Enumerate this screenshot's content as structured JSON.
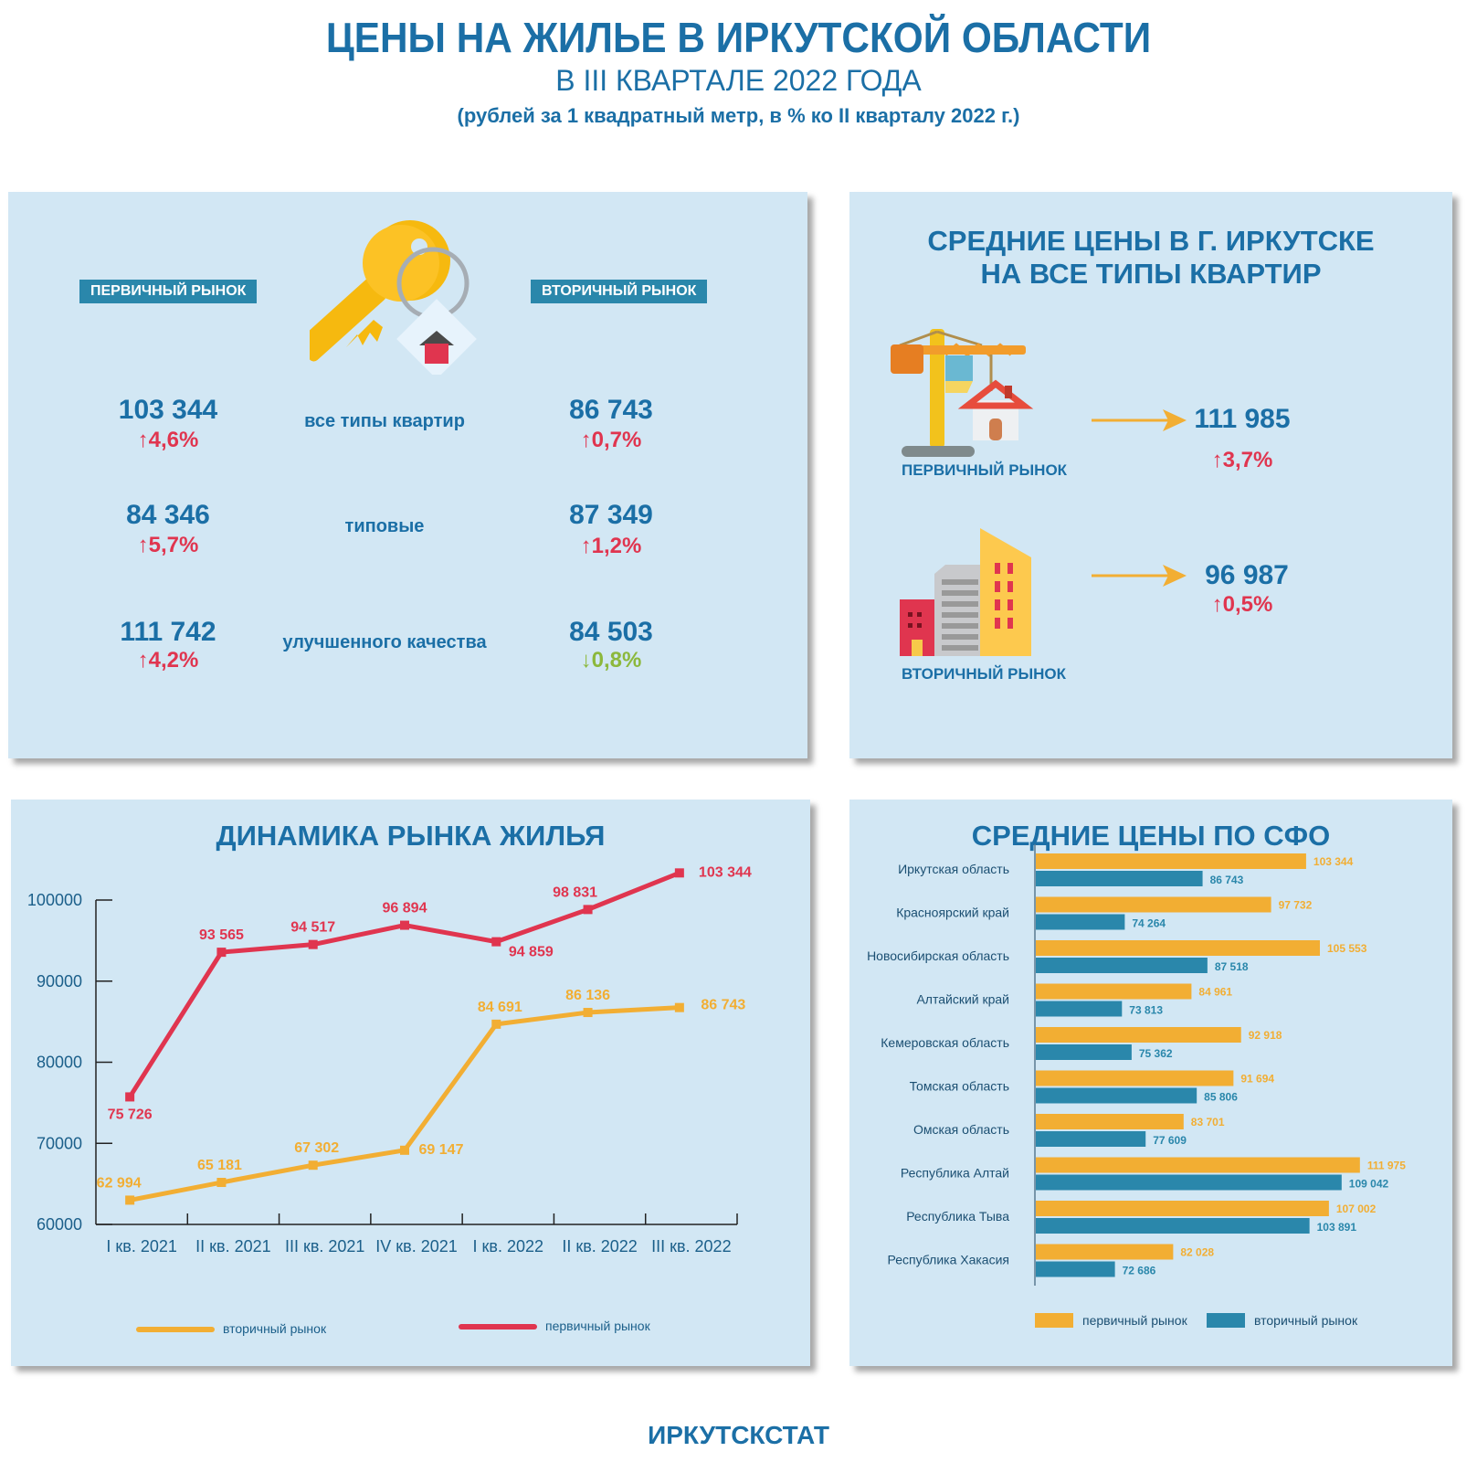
{
  "header": {
    "title": "ЦЕНЫ НА ЖИЛЬЕ В ИРКУТСКОЙ ОБЛАСТИ",
    "subtitle": "В III КВАРТАЛЕ 2022 ГОДА",
    "units": "(рублей за 1 квадратный метр, в % ко II кварталу 2022 г.)"
  },
  "region_panel": {
    "primary_label": "ПЕРВИЧНЫЙ РЫНОК",
    "secondary_label": "ВТОРИЧНЫЙ РЫНОК",
    "icon": "key-with-house-tag-icon",
    "rows": [
      {
        "category": "все типы квартир",
        "primary_value": "103 344",
        "primary_change": "↑4,6%",
        "secondary_value": "86 743",
        "secondary_change": "↑0,7%",
        "secondary_dir": "up"
      },
      {
        "category": "типовые",
        "primary_value": "84 346",
        "primary_change": "↑5,7%",
        "secondary_value": "87 349",
        "secondary_change": "↑1,2%",
        "secondary_dir": "up"
      },
      {
        "category": "улучшенного качества",
        "primary_value": "111 742",
        "primary_change": "↑4,2%",
        "secondary_value": "84 503",
        "secondary_change": "↓0,8%",
        "secondary_dir": "down"
      }
    ]
  },
  "city_panel": {
    "title_line1": "СРЕДНИЕ  ЦЕНЫ  В  Г.  ИРКУТСКЕ",
    "title_line2": "НА ВСЕ ТИПЫ КВАРТИР",
    "primary": {
      "label": "ПЕРВИЧНЫЙ РЫНОК",
      "value": "111 985",
      "change": "↑3,7%",
      "icon": "crane-house-icon"
    },
    "secondary": {
      "label": "ВТОРИЧНЫЙ РЫНОК",
      "value": "96 987",
      "change": "↑0,5%",
      "icon": "buildings-icon"
    }
  },
  "colors": {
    "primary_line": "#e0354f",
    "secondary_line": "#f2ae33",
    "bar_primary": "#f2ae33",
    "bar_secondary": "#2a87ab",
    "title_blue": "#1b6fa6",
    "panel_bg": "#d2e7f4"
  },
  "chart_data": [
    {
      "type": "line",
      "title": "ДИНАМИКА РЫНКА ЖИЛЬЯ",
      "categories": [
        "I кв. 2021",
        "II кв. 2021",
        "III кв. 2021",
        "IV кв. 2021",
        "I кв. 2022",
        "II кв. 2022",
        "III кв. 2022"
      ],
      "ylim": [
        60000,
        100000
      ],
      "yticks": [
        "60000",
        "70000",
        "80000",
        "90000",
        "100000"
      ],
      "ytick_values": [
        60000,
        70000,
        80000,
        90000,
        100000
      ],
      "series": [
        {
          "name": "первичный рынок",
          "values": [
            75726,
            93565,
            94517,
            96894,
            94859,
            98831,
            103344
          ],
          "labels": [
            "75 726",
            "93 565",
            "94 517",
            "96 894",
            "94 859",
            "98 831",
            "103 344"
          ]
        },
        {
          "name": "вторичный рынок",
          "values": [
            62994,
            65181,
            67302,
            69147,
            84691,
            86136,
            86743
          ],
          "labels": [
            "62 994",
            "65 181",
            "67 302",
            "69 147",
            "84 691",
            "86 136",
            "86 743"
          ]
        }
      ],
      "legend": [
        "вторичный рынок",
        "первичный рынок"
      ],
      "legend_position": "bottom"
    },
    {
      "type": "bar",
      "orientation": "horizontal",
      "title": "СРЕДНИЕ ЦЕНЫ ПО СФО",
      "categories": [
        "Иркутская область",
        "Красноярский край",
        "Новосибирская область",
        "Алтайский край",
        "Кемеровская область",
        "Томская область",
        "Омская область",
        "Республика Алтай",
        "Республика Тыва",
        "Республика Хакасия"
      ],
      "series": [
        {
          "name": "первичный рынок",
          "values": [
            103344,
            97732,
            105553,
            84961,
            92918,
            91694,
            83701,
            111975,
            107002,
            82028
          ],
          "labels": [
            "103 344",
            "97 732",
            "105 553",
            "84 961",
            "92 918",
            "91 694",
            "83 701",
            "111 975",
            "107 002",
            "82 028"
          ]
        },
        {
          "name": "вторичный рынок",
          "values": [
            86743,
            74264,
            87518,
            73813,
            75362,
            85806,
            77609,
            109042,
            103891,
            72686
          ],
          "labels": [
            "86 743",
            "74 264",
            "87 518",
            "73 813",
            "75 362",
            "85 806",
            "77 609",
            "109 042",
            "103 891",
            "72 686"
          ]
        }
      ],
      "legend": [
        "первичный рынок",
        "вторичный рынок"
      ],
      "legend_position": "bottom"
    }
  ],
  "footer": "ИРКУТСКСТАТ"
}
